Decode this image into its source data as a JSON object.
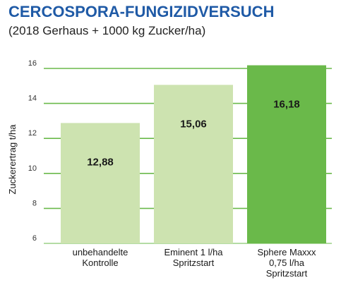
{
  "title": "CERCOSPORA-FUNGIZIDVERSUCH",
  "subtitle": "(2018 Gerhaus + 1000 kg Zucker/ha)",
  "colors": {
    "title": "#1f5aa6",
    "grid": "#6ab94a",
    "bar_light": "#cde3b0",
    "bar_highlight": "#6ab94a"
  },
  "chart_data": {
    "type": "bar",
    "title": "CERCOSPORA-FUNGIZIDVERSUCH",
    "subtitle": "(2018 Gerhaus + 1000 kg Zucker/ha)",
    "xlabel": "",
    "ylabel": "Zuckerertrag t/ha",
    "ylim": [
      6,
      16
    ],
    "yticks": [
      6,
      8,
      10,
      12,
      14,
      16
    ],
    "grid": true,
    "categories": [
      [
        "unbehandelte",
        "Kontrolle"
      ],
      [
        "Eminent 1 l/ha",
        "Spritzstart"
      ],
      [
        "Sphere Maxxx",
        "0,75 l/ha",
        "Spritzstart"
      ]
    ],
    "values": [
      12.88,
      15.06,
      16.18
    ],
    "value_labels": [
      "12,88",
      "15,06",
      "16,18"
    ],
    "highlight_index": 2
  }
}
